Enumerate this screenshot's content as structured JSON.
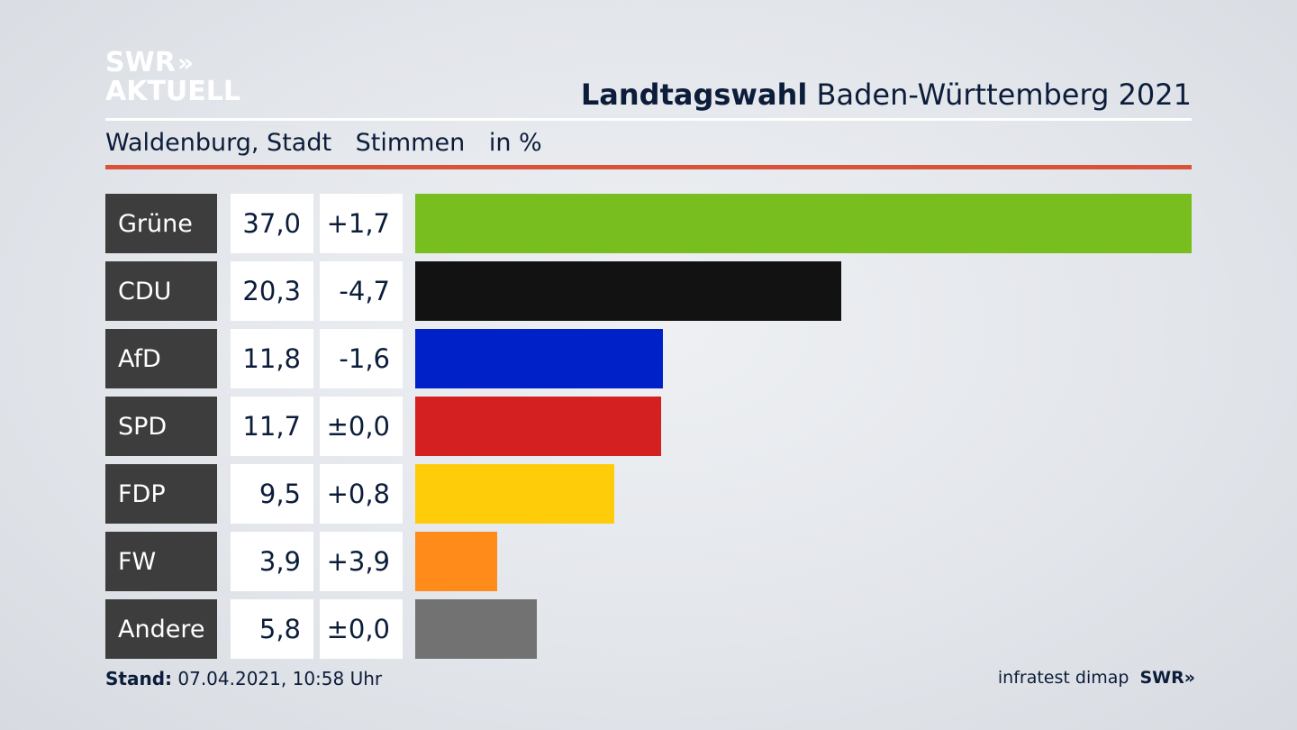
{
  "brand": {
    "logo_line1": "SWR",
    "logo_arrows": "»",
    "logo_line2": "AKTUELL"
  },
  "header": {
    "title_bold": "Landtagswahl",
    "title_rest": " Baden-Württemberg 2021",
    "location": "Waldenburg, Stadt",
    "measure": "Stimmen",
    "unit": "in %"
  },
  "colors": {
    "accent_rule": "#d9533a",
    "party_label_bg": "#3d3d3d"
  },
  "chart_data": {
    "type": "bar",
    "orientation": "horizontal",
    "title": "Landtagswahl Baden-Württemberg 2021",
    "subtitle": "Waldenburg, Stadt",
    "unit": "in %",
    "categories": [
      "Grüne",
      "CDU",
      "AfD",
      "SPD",
      "FDP",
      "FW",
      "Andere"
    ],
    "values": [
      37.0,
      20.3,
      11.8,
      11.7,
      9.5,
      3.9,
      5.8
    ],
    "value_labels": [
      "37,0",
      "20,3",
      "11,8",
      "11,7",
      "9,5",
      "3,9",
      "5,8"
    ],
    "change_labels": [
      "+1,7",
      "-4,7",
      "-1,6",
      "±0,0",
      "+0,8",
      "+3,9",
      "±0,0"
    ],
    "colors": [
      "#78be1e",
      "#121212",
      "#0020c8",
      "#d42020",
      "#ffcc0a",
      "#ff8c1a",
      "#727272"
    ],
    "xlim": [
      0,
      37.0
    ]
  },
  "footer": {
    "stand_label": "Stand:",
    "stand_value": " 07.04.2021, 10:58 Uhr",
    "source": "infratest dimap",
    "brand": "SWR",
    "brand_arrows": "»"
  }
}
